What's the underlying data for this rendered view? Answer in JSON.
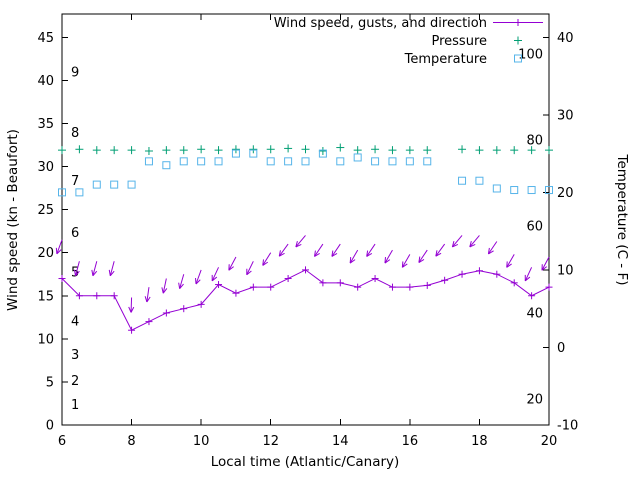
{
  "window": {
    "background": "#ffffff"
  },
  "chart_data": {
    "type": "line",
    "title": "",
    "xlabel": "Local time (Atlantic/Canary)",
    "ylabel_left": "Wind speed (kn - Beaufort)",
    "ylabel_right": "Temperature (C - F)",
    "x_range": [
      6,
      20
    ],
    "y_left_range": [
      0,
      47.7
    ],
    "y_right_range": [
      -10,
      43
    ],
    "x_ticks": [
      6,
      8,
      10,
      12,
      14,
      16,
      18,
      20
    ],
    "y_left_ticks": [
      0,
      5,
      10,
      15,
      20,
      25,
      30,
      35,
      40,
      45
    ],
    "y_right_ticks": [
      -10,
      0,
      10,
      20,
      30,
      40
    ],
    "grid": false,
    "legend_position": "top-right-inside",
    "legend": [
      {
        "label": "Wind speed, gusts, and direction",
        "marker": "line-plus",
        "color": "#9400d3"
      },
      {
        "label": "Pressure",
        "marker": "plus",
        "color": "#009e73"
      },
      {
        "label": "Temperature",
        "marker": "open-square",
        "color": "#56b4e9"
      }
    ],
    "beaufort_labels": [
      {
        "label": "1",
        "kn": 2.3
      },
      {
        "label": "2",
        "kn": 5.1
      },
      {
        "label": "3",
        "kn": 8.1
      },
      {
        "label": "4",
        "kn": 12.0
      },
      {
        "label": "5",
        "kn": 17.7
      },
      {
        "label": "6",
        "kn": 22.3
      },
      {
        "label": "7",
        "kn": 28.3
      },
      {
        "label": "8",
        "kn": 33.9
      },
      {
        "label": "9",
        "kn": 40.9
      }
    ],
    "fahrenheit_labels": [
      {
        "label": "20",
        "c": -6.7
      },
      {
        "label": "40",
        "c": 4.4
      },
      {
        "label": "60",
        "c": 15.6
      },
      {
        "label": "80",
        "c": 26.7
      },
      {
        "label": "100",
        "c": 37.8
      }
    ],
    "x": [
      6,
      6.5,
      7,
      7.5,
      8,
      8.5,
      9,
      9.5,
      10,
      10.5,
      11,
      11.5,
      12,
      12.5,
      13,
      13.5,
      14,
      14.5,
      15,
      15.5,
      16,
      16.5,
      17,
      17.5,
      18,
      18.5,
      19,
      19.5,
      20
    ],
    "series": {
      "wind_speed_kn": [
        17,
        15,
        15,
        15,
        11,
        12,
        13,
        13.5,
        14,
        16.3,
        15.3,
        16,
        16,
        17,
        18,
        16.5,
        16.5,
        16,
        17,
        16,
        16,
        16.2,
        16.8,
        17.5,
        17.9,
        17.5,
        16.5,
        15,
        16
      ],
      "gust_kn": [
        21.5,
        19,
        19,
        19,
        14.8,
        16,
        17,
        17.5,
        18,
        18.3,
        19.5,
        19,
        20,
        21,
        22,
        21,
        21,
        20.3,
        21,
        20.3,
        19.8,
        20.3,
        21,
        22,
        22,
        21.3,
        19.8,
        18.3,
        19.5
      ],
      "gust_direction_deg": [
        200,
        195,
        195,
        195,
        182,
        188,
        192,
        196,
        200,
        205,
        208,
        206,
        212,
        216,
        220,
        214,
        214,
        210,
        214,
        210,
        210,
        214,
        216,
        220,
        220,
        214,
        210,
        205,
        208
      ],
      "pressure_plotted_level_kn_axis": [
        31.9,
        32,
        31.9,
        31.9,
        31.9,
        31.8,
        31.9,
        31.9,
        32,
        31.9,
        32,
        32,
        32,
        32.1,
        32,
        31.8,
        32.2,
        31.9,
        32,
        31.9,
        31.9,
        31.9,
        null,
        32,
        31.9,
        31.9,
        31.9,
        31.9,
        31.9
      ],
      "temperature_c": [
        20,
        20,
        21,
        21,
        21,
        24,
        23.5,
        24,
        24,
        24,
        25,
        25,
        24,
        24,
        24,
        25,
        24,
        24.5,
        24,
        24,
        24,
        24,
        null,
        21.5,
        21.5,
        20.5,
        20.3,
        20.3,
        20.3
      ]
    }
  }
}
